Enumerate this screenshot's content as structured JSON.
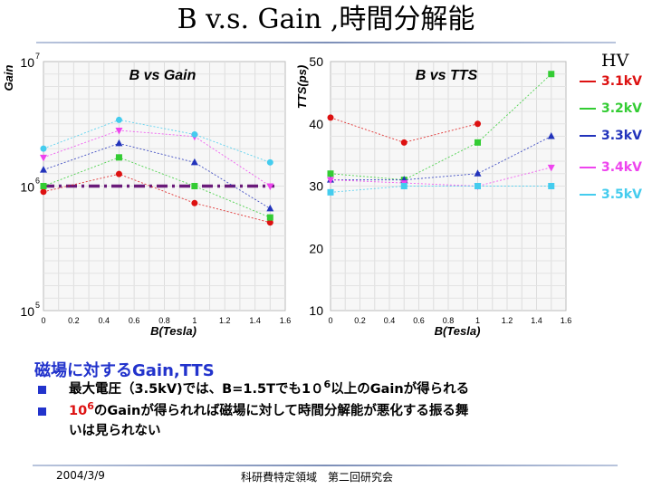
{
  "slide": {
    "title": "B v.s. Gain ,時間分解能",
    "footer_date": "2004/3/9",
    "footer_center": "科研費特定領域　第二回研究会"
  },
  "text": {
    "heading": "磁場に対するGain,TTS",
    "bullet1_a": "最大電圧（3.5kV)では、B=1.5Tでも1０",
    "bullet1_sup": "6",
    "bullet1_b": "以上のGainが得られる",
    "bullet2_a": "10",
    "bullet2_sup": "6",
    "bullet2_b": "のGainが得られれば磁場に対して時間分解能が悪化する振る舞",
    "bullet2_c": "いは見られない"
  },
  "legend": {
    "title": "HV",
    "items": [
      {
        "label": "3.1kV",
        "color": "#dd1111"
      },
      {
        "label": "3.2kV",
        "color": "#33cc33"
      },
      {
        "label": "3.3kV",
        "color": "#2233bb"
      },
      {
        "label": "3.4kV",
        "color": "#ee44ee"
      },
      {
        "label": "3.5kV",
        "color": "#44ccee"
      }
    ]
  },
  "chart_data": [
    {
      "type": "line",
      "title": "B vs Gain",
      "xlabel": "B(Tesla)",
      "ylabel": "Gain",
      "xlim": [
        0,
        1.6
      ],
      "ylim": [
        100000,
        10000000
      ],
      "yscale": "log",
      "x_ticks": [
        "0",
        "0.2",
        "0.4",
        "0.6",
        "0.8",
        "1",
        "1.2",
        "1.4",
        "1.6"
      ],
      "y_tick_labels": {
        "top": "10",
        "top_exp": "7",
        "mid": "10",
        "mid_exp": "6",
        "bottom": "10",
        "bottom_exp": "5"
      },
      "reference_line": {
        "y": 1000000,
        "color": "#6a1b7a",
        "style": "dash-dot"
      },
      "grid": true,
      "series": [
        {
          "name": "3.1kV",
          "color": "#dd1111",
          "marker": "circle",
          "x": [
            0,
            0.5,
            1,
            1.5
          ],
          "y": [
            900000,
            1250000,
            730000,
            510000
          ]
        },
        {
          "name": "3.2kV",
          "color": "#33cc33",
          "marker": "square",
          "x": [
            0,
            0.5,
            1,
            1.5
          ],
          "y": [
            1000000,
            1700000,
            1000000,
            560000
          ]
        },
        {
          "name": "3.3kV",
          "color": "#2233bb",
          "marker": "triangle",
          "x": [
            0,
            0.5,
            1,
            1.5
          ],
          "y": [
            1350000,
            2200000,
            1550000,
            660000
          ]
        },
        {
          "name": "3.4kV",
          "color": "#ee44ee",
          "marker": "triangle-down",
          "x": [
            0,
            0.5,
            1,
            1.5
          ],
          "y": [
            1700000,
            2800000,
            2500000,
            1000000
          ]
        },
        {
          "name": "3.5kV",
          "color": "#44ccee",
          "marker": "circle",
          "x": [
            0,
            0.5,
            1,
            1.5
          ],
          "y": [
            2000000,
            3400000,
            2600000,
            1550000
          ]
        }
      ]
    },
    {
      "type": "line",
      "title": "B vs TTS",
      "xlabel": "B(Tesla)",
      "ylabel": "TTS(ps)",
      "xlim": [
        0,
        1.6
      ],
      "ylim": [
        10,
        50
      ],
      "x_ticks": [
        "0",
        "0.2",
        "0.4",
        "0.6",
        "0.8",
        "1",
        "1.2",
        "1.4",
        "1.6"
      ],
      "y_ticks": [
        10,
        20,
        30,
        40,
        50
      ],
      "grid": true,
      "series": [
        {
          "name": "3.1kV",
          "color": "#dd1111",
          "marker": "circle",
          "x": [
            0,
            0.5,
            1
          ],
          "y": [
            41,
            37,
            40
          ]
        },
        {
          "name": "3.2kV",
          "color": "#33cc33",
          "marker": "square",
          "x": [
            0,
            0.5,
            1,
            1.5
          ],
          "y": [
            32,
            31,
            37,
            48
          ]
        },
        {
          "name": "3.3kV",
          "color": "#2233bb",
          "marker": "triangle",
          "x": [
            0,
            0.5,
            1,
            1.5
          ],
          "y": [
            31,
            31,
            32,
            38
          ]
        },
        {
          "name": "3.4kV",
          "color": "#ee44ee",
          "marker": "triangle-down",
          "x": [
            0,
            0.5,
            1,
            1.5
          ],
          "y": [
            31,
            30.5,
            30,
            33
          ]
        },
        {
          "name": "3.5kV",
          "color": "#44ccee",
          "marker": "square",
          "x": [
            0,
            0.5,
            1,
            1.5
          ],
          "y": [
            29,
            30,
            30,
            30
          ]
        }
      ]
    }
  ]
}
